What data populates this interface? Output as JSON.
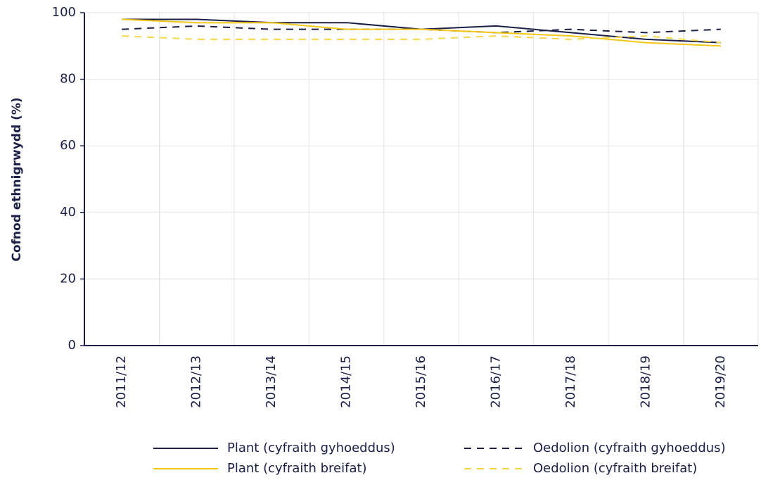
{
  "chart_data": {
    "type": "line",
    "ylabel": "Cofnod ethnigrwydd (%)",
    "categories": [
      "2011/12",
      "2012/13",
      "2013/14",
      "2014/15",
      "2015/16",
      "2016/17",
      "2017/18",
      "2018/19",
      "2019/20"
    ],
    "series": [
      {
        "name": "Plant (cyfraith gyhoeddus)",
        "color": "#1b1f45",
        "dash": false,
        "values": [
          98,
          98,
          97,
          97,
          95,
          96,
          94,
          92,
          91
        ]
      },
      {
        "name": "Oedolion (cyfraith gyhoeddus)",
        "color": "#1b1f45",
        "dash": true,
        "values": [
          95,
          96,
          95,
          95,
          95,
          94,
          95,
          94,
          95
        ]
      },
      {
        "name": "Plant (cyfraith breifat)",
        "color": "#f5c518",
        "dash": false,
        "values": [
          98,
          97,
          97,
          95,
          95,
          94,
          93,
          91,
          90
        ]
      },
      {
        "name": "Oedolion (cyfraith breifat)",
        "color": "#f7d54a",
        "dash": true,
        "values": [
          93,
          92,
          92,
          92,
          92,
          93,
          92,
          93,
          91
        ]
      }
    ],
    "ylim": [
      0,
      100
    ],
    "yticks": [
      0,
      20,
      40,
      60,
      80,
      100
    ],
    "grid": true
  }
}
